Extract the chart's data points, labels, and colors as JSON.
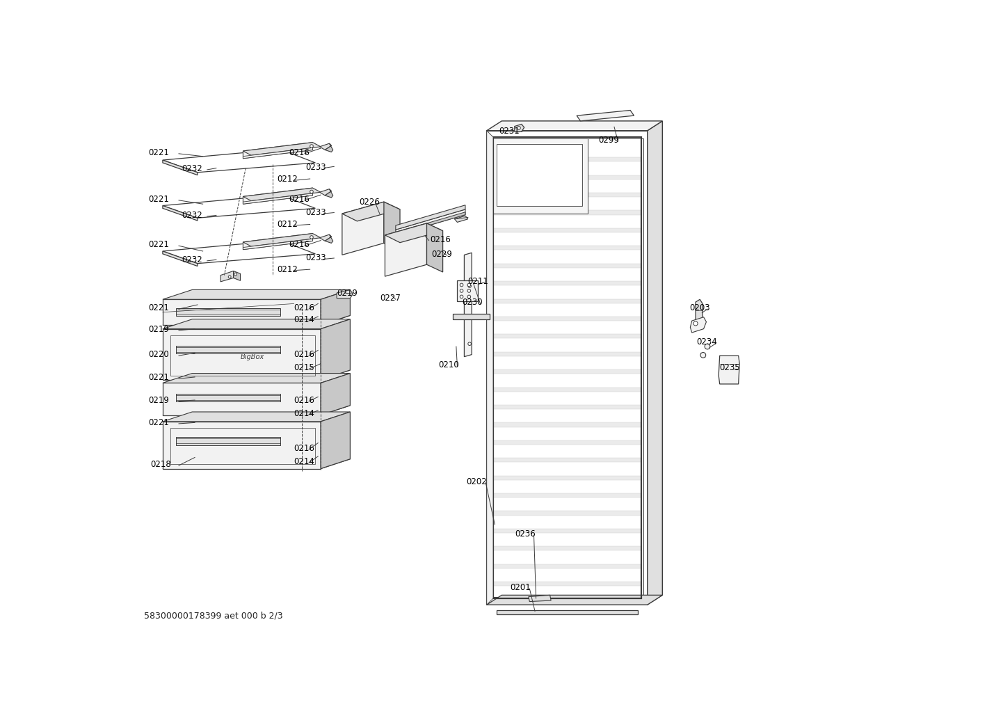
{
  "bg_color": "#ffffff",
  "lc": "#3a3a3a",
  "footer": "58300000178399 aet 000 b 2/3",
  "label_fontsize": 8.5,
  "labels_left": [
    [
      "0221",
      60,
      128
    ],
    [
      "0232",
      117,
      158
    ],
    [
      "0221",
      60,
      215
    ],
    [
      "0232",
      117,
      245
    ],
    [
      "0221",
      60,
      300
    ],
    [
      "0232",
      117,
      328
    ],
    [
      "0221",
      60,
      418
    ],
    [
      "0219",
      60,
      458
    ],
    [
      "0220",
      60,
      505
    ],
    [
      "0221",
      60,
      548
    ],
    [
      "0219",
      60,
      590
    ],
    [
      "0221",
      60,
      632
    ],
    [
      "0218",
      65,
      710
    ]
  ],
  "labels_right_drawers": [
    [
      "0216",
      300,
      128
    ],
    [
      "0233",
      328,
      155
    ],
    [
      "0212",
      270,
      178
    ],
    [
      "0216",
      300,
      215
    ],
    [
      "0233",
      328,
      240
    ],
    [
      "0212",
      270,
      262
    ],
    [
      "0216",
      300,
      300
    ],
    [
      "0233",
      328,
      325
    ],
    [
      "0212",
      270,
      346
    ],
    [
      "0216",
      305,
      418
    ],
    [
      "0214",
      305,
      440
    ],
    [
      "0216",
      305,
      505
    ],
    [
      "0215",
      305,
      530
    ],
    [
      "0216",
      305,
      590
    ],
    [
      "0214",
      305,
      615
    ],
    [
      "0216",
      305,
      680
    ],
    [
      "0214",
      305,
      705
    ]
  ],
  "labels_center": [
    [
      "0226",
      432,
      220
    ],
    [
      "0216",
      562,
      290
    ],
    [
      "0229",
      570,
      318
    ],
    [
      "0219",
      390,
      390
    ],
    [
      "0227",
      468,
      400
    ]
  ],
  "labels_door": [
    [
      "0231",
      693,
      88
    ],
    [
      "0299",
      885,
      105
    ],
    [
      "0211",
      637,
      368
    ],
    [
      "0230",
      628,
      408
    ],
    [
      "0210",
      585,
      525
    ],
    [
      "0202",
      638,
      742
    ],
    [
      "0236",
      728,
      840
    ],
    [
      "0201",
      720,
      940
    ]
  ],
  "labels_far_right": [
    [
      "0203",
      1052,
      418
    ],
    [
      "0234",
      1067,
      482
    ],
    [
      "0235",
      1110,
      530
    ]
  ]
}
